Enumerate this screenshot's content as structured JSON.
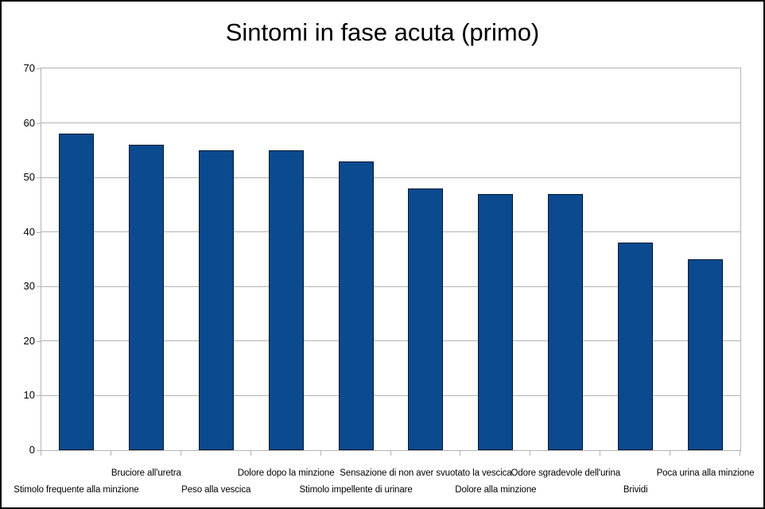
{
  "title": "Sintomi in fase acuta (primo)",
  "chart_data": {
    "type": "bar",
    "title": "Sintomi in fase acuta (primo)",
    "categories": [
      "Stimolo frequente alla minzione",
      "Bruciore all'uretra",
      "Peso alla vescica",
      "Dolore dopo la minzione",
      "Stimolo impellente di urinare",
      "Sensazione di non aver svuotato la vescica",
      "Dolore alla minzione",
      "Odore sgradevole dell'urina",
      "Brividi",
      "Poca urina alla minzione"
    ],
    "values": [
      58,
      56,
      55,
      55,
      53,
      48,
      47,
      47,
      38,
      35
    ],
    "xlabel": "",
    "ylabel": "",
    "ylim": [
      0,
      70
    ],
    "yticks": [
      0,
      10,
      20,
      30,
      40,
      50,
      60,
      70
    ],
    "grid": "horizontal",
    "legend": "none",
    "x_label_layout": "staggered-two-rows",
    "colors": {
      "bar_fill": "#0b4a8f",
      "bar_border": "#00152e",
      "grid": "#b3b3b3",
      "axis": "#b3b3b3",
      "text": "#000000",
      "frame": "#000000",
      "background": "#ffffff"
    }
  }
}
